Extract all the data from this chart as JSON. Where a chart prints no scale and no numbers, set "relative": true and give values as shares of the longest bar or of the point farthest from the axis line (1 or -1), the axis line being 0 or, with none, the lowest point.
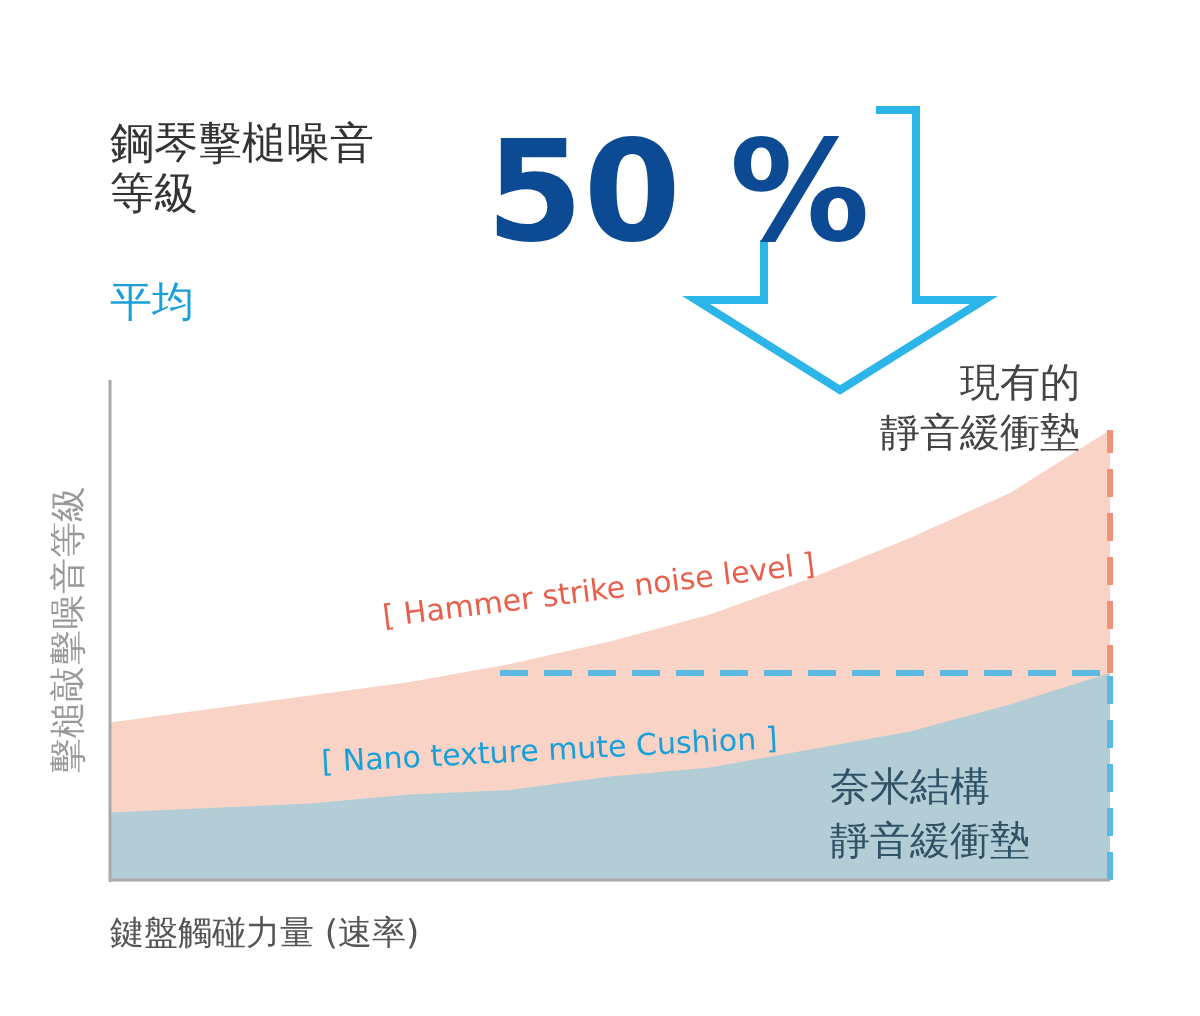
{
  "chart_data": {
    "type": "area",
    "title": "鋼琴擊槌噪音等級",
    "subtitle": "平均",
    "xlabel": "鍵盤觸碰力量 (速率)",
    "ylabel": "擊槌敲擊噪音等級",
    "relative": true,
    "categories": [
      null,
      null,
      null,
      null,
      null,
      null,
      null,
      null,
      null,
      null,
      null
    ],
    "series": [
      {
        "name": "[ Hammer strike noise level ]",
        "color": "#f9d3c6",
        "values": [
          0.35,
          0.38,
          0.41,
          0.44,
          0.48,
          0.53,
          0.59,
          0.67,
          0.76,
          0.86,
          1.0
        ]
      },
      {
        "name": "[ Nano texture mute Cushion ]",
        "color": "#b3cdd6",
        "values": [
          0.15,
          0.16,
          0.17,
          0.19,
          0.2,
          0.23,
          0.25,
          0.29,
          0.33,
          0.39,
          0.46
        ]
      }
    ],
    "ref_lines": [
      {
        "axis": "y",
        "value": 0.46,
        "color": "#5bb8e0",
        "line_style": "dashed"
      }
    ],
    "annotations": [
      "50 %",
      "現有的",
      "靜音緩衝墊",
      "奈米結構",
      "靜音緩衝墊"
    ]
  }
}
